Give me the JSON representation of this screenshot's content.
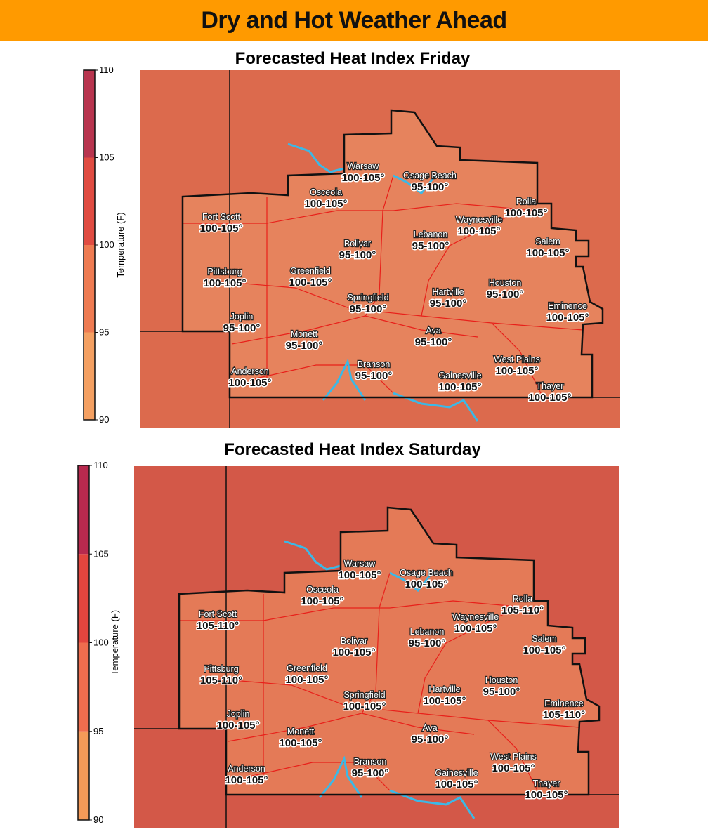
{
  "header": {
    "title": "Dry and Hot Weather Ahead"
  },
  "panels": [
    {
      "title": "Forecasted Heat Index Friday",
      "colorbar": {
        "label": "Temperature (F)",
        "ticks": [
          90,
          95,
          100,
          105,
          110
        ],
        "colors": [
          "#f4a062",
          "#ee7b52",
          "#e04c42",
          "#b8354f"
        ]
      },
      "cities": [
        {
          "name": "Warsaw",
          "range": "100-105°"
        },
        {
          "name": "Osage Beach",
          "range": "95-100°"
        },
        {
          "name": "Osceola",
          "range": "100-105°"
        },
        {
          "name": "Rolla",
          "range": "100-105°"
        },
        {
          "name": "Fort Scott",
          "range": "100-105°"
        },
        {
          "name": "Waynesville",
          "range": "100-105°"
        },
        {
          "name": "Lebanon",
          "range": "95-100°"
        },
        {
          "name": "Bolivar",
          "range": "95-100°"
        },
        {
          "name": "Salem",
          "range": "100-105°"
        },
        {
          "name": "Pittsburg",
          "range": "100-105°"
        },
        {
          "name": "Greenfield",
          "range": "100-105°"
        },
        {
          "name": "Houston",
          "range": "95-100°"
        },
        {
          "name": "Hartville",
          "range": "95-100°"
        },
        {
          "name": "Springfield",
          "range": "95-100°"
        },
        {
          "name": "Eminence",
          "range": "100-105°"
        },
        {
          "name": "Joplin",
          "range": "95-100°"
        },
        {
          "name": "Monett",
          "range": "95-100°"
        },
        {
          "name": "Ava",
          "range": "95-100°"
        },
        {
          "name": "West Plains",
          "range": "100-105°"
        },
        {
          "name": "Branson",
          "range": "95-100°"
        },
        {
          "name": "Gainesville",
          "range": "100-105°"
        },
        {
          "name": "Anderson",
          "range": "100-105°"
        },
        {
          "name": "Thayer",
          "range": "100-105°"
        }
      ]
    },
    {
      "title": "Forecasted Heat Index Saturday",
      "colorbar": {
        "label": "Temperature (F)",
        "ticks": [
          90,
          95,
          100,
          105,
          110
        ],
        "colors": [
          "#f59a58",
          "#f06d4e",
          "#e4453e",
          "#b8294e"
        ]
      },
      "cities": [
        {
          "name": "Warsaw",
          "range": "100-105°"
        },
        {
          "name": "Osage Beach",
          "range": "100-105°"
        },
        {
          "name": "Osceola",
          "range": "100-105°"
        },
        {
          "name": "Rolla",
          "range": "105-110°"
        },
        {
          "name": "Fort Scott",
          "range": "105-110°"
        },
        {
          "name": "Waynesville",
          "range": "100-105°"
        },
        {
          "name": "Lebanon",
          "range": "95-100°"
        },
        {
          "name": "Bolivar",
          "range": "100-105°"
        },
        {
          "name": "Salem",
          "range": "100-105°"
        },
        {
          "name": "Pittsburg",
          "range": "105-110°"
        },
        {
          "name": "Greenfield",
          "range": "100-105°"
        },
        {
          "name": "Houston",
          "range": "95-100°"
        },
        {
          "name": "Hartville",
          "range": "100-105°"
        },
        {
          "name": "Springfield",
          "range": "100-105°"
        },
        {
          "name": "Eminence",
          "range": "105-110°"
        },
        {
          "name": "Joplin",
          "range": "100-105°"
        },
        {
          "name": "Monett",
          "range": "100-105°"
        },
        {
          "name": "Ava",
          "range": "95-100°"
        },
        {
          "name": "West Plains",
          "range": "100-105°"
        },
        {
          "name": "Branson",
          "range": "95-100°"
        },
        {
          "name": "Gainesville",
          "range": "100-105°"
        },
        {
          "name": "Anderson",
          "range": "100-105°"
        },
        {
          "name": "Thayer",
          "range": "100-105°"
        }
      ]
    }
  ]
}
